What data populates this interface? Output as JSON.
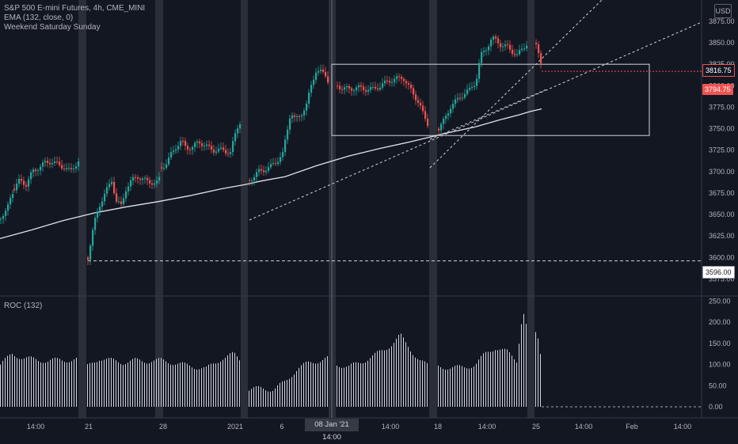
{
  "chart_data": [
    {
      "type": "candlestick",
      "title": "S&P 500 E-mini Futures, 4h, CME_MINI",
      "indicators": [
        "EMA (132, close, 0)",
        "Weekend Saturday Sunday"
      ],
      "currency": "USD",
      "x_ticks": [
        "14:00",
        "21",
        "28",
        "2021",
        "6",
        "08 Jan '21  14:00",
        "14:00",
        "18",
        "14:00",
        "25",
        "14:00",
        "Feb",
        "14:00"
      ],
      "y_ticks": [
        3875,
        3850,
        3825,
        3800,
        3775,
        3750,
        3725,
        3700,
        3675,
        3650,
        3625,
        3600,
        3575
      ],
      "y_tick_labels": [
        "3875.00",
        "3850.00",
        "3825.00",
        "3800.00",
        "3775.00",
        "3750.00",
        "3725.00",
        "3700.00",
        "3675.00",
        "3650.00",
        "3625.00",
        "3600.00",
        "3575.00"
      ],
      "ylim": [
        3568,
        3880
      ],
      "price_tags": [
        {
          "label": "3816.75",
          "value": 3816.75,
          "style": "boxed-red"
        },
        {
          "label": "3794.75",
          "value": 3794.75,
          "style": "filled-red"
        },
        {
          "label": "3596.00",
          "value": 3596.0,
          "style": "boxed-white"
        }
      ],
      "horizontal_levels": [
        3596.0,
        3816.75
      ],
      "rectangle": {
        "price_top": 3825,
        "price_bottom": 3742
      },
      "colors": {
        "up": "#26a69a",
        "down": "#ef5350",
        "ema": "#e0e3eb",
        "background": "#131722",
        "weekend": "#2a2e39"
      },
      "ema_path": [
        [
          0,
          3622
        ],
        [
          40,
          3632
        ],
        [
          80,
          3643
        ],
        [
          120,
          3652
        ],
        [
          160,
          3659
        ],
        [
          200,
          3665
        ],
        [
          240,
          3672
        ],
        [
          280,
          3680
        ],
        [
          310,
          3685
        ],
        [
          330,
          3689
        ],
        [
          360,
          3694
        ],
        [
          400,
          3707
        ],
        [
          440,
          3718
        ],
        [
          480,
          3727
        ],
        [
          520,
          3735
        ],
        [
          560,
          3744
        ],
        [
          600,
          3752
        ],
        [
          630,
          3760
        ],
        [
          655,
          3766
        ],
        [
          670,
          3770
        ],
        [
          684,
          3773
        ]
      ],
      "candle_segments": [
        {
          "from": 0,
          "to": 16,
          "anchors": [
            [
              0,
              3645
            ],
            [
              5,
              3655
            ],
            [
              10,
              3662
            ],
            [
              16,
              3675
            ]
          ]
        },
        {
          "from": 17,
          "to": 98,
          "anchors": [
            [
              17,
              3680
            ],
            [
              24,
              3690
            ],
            [
              32,
              3685
            ],
            [
              40,
              3700
            ],
            [
              48,
              3705
            ],
            [
              56,
              3710
            ],
            [
              64,
              3712
            ],
            [
              72,
              3708
            ],
            [
              80,
              3705
            ],
            [
              88,
              3700
            ],
            [
              94,
              3708
            ],
            [
              98,
              3712
            ]
          ]
        },
        {
          "from": 110,
          "to": 202,
          "anchors": [
            [
              110,
              3600
            ],
            [
              114,
              3620
            ],
            [
              118,
              3640
            ],
            [
              124,
              3660
            ],
            [
              132,
              3675
            ],
            [
              140,
              3690
            ],
            [
              146,
              3665
            ],
            [
              152,
              3660
            ],
            [
              158,
              3680
            ],
            [
              166,
              3690
            ],
            [
              172,
              3695
            ],
            [
              180,
              3690
            ],
            [
              190,
              3688
            ],
            [
              196,
              3685
            ],
            [
              202,
              3695
            ]
          ]
        },
        {
          "from": 203,
          "to": 303,
          "anchors": [
            [
              203,
              3705
            ],
            [
              210,
              3710
            ],
            [
              216,
              3722
            ],
            [
              222,
              3730
            ],
            [
              228,
              3735
            ],
            [
              234,
              3728
            ],
            [
              242,
              3728
            ],
            [
              250,
              3735
            ],
            [
              258,
              3730
            ],
            [
              268,
              3725
            ],
            [
              280,
              3725
            ],
            [
              290,
              3722
            ],
            [
              298,
              3750
            ],
            [
              303,
              3760
            ]
          ]
        },
        {
          "from": 314,
          "to": 414,
          "anchors": [
            [
              314,
              3690
            ],
            [
              320,
              3695
            ],
            [
              326,
              3700
            ],
            [
              332,
              3702
            ],
            [
              340,
              3705
            ],
            [
              348,
              3712
            ],
            [
              356,
              3720
            ],
            [
              362,
              3750
            ],
            [
              366,
              3770
            ],
            [
              372,
              3760
            ],
            [
              378,
              3765
            ],
            [
              386,
              3778
            ],
            [
              392,
              3800
            ],
            [
              398,
              3818
            ],
            [
              404,
              3816
            ],
            [
              410,
              3812
            ],
            [
              414,
              3805
            ]
          ]
        },
        {
          "from": 425,
          "to": 541,
          "anchors": [
            [
              425,
              3800
            ],
            [
              432,
              3797
            ],
            [
              440,
              3796
            ],
            [
              450,
              3798
            ],
            [
              460,
              3796
            ],
            [
              470,
              3796
            ],
            [
              480,
              3800
            ],
            [
              490,
              3806
            ],
            [
              500,
              3808
            ],
            [
              508,
              3810
            ],
            [
              514,
              3800
            ],
            [
              520,
              3792
            ],
            [
              528,
              3780
            ],
            [
              534,
              3765
            ],
            [
              541,
              3752
            ]
          ]
        },
        {
          "from": 553,
          "to": 665,
          "anchors": [
            [
              553,
              3750
            ],
            [
              560,
              3760
            ],
            [
              568,
              3776
            ],
            [
              576,
              3783
            ],
            [
              584,
              3790
            ],
            [
              592,
              3795
            ],
            [
              600,
              3805
            ],
            [
              606,
              3835
            ],
            [
              614,
              3845
            ],
            [
              620,
              3855
            ],
            [
              626,
              3853
            ],
            [
              632,
              3847
            ],
            [
              640,
              3845
            ],
            [
              646,
              3840
            ],
            [
              652,
              3835
            ],
            [
              660,
              3845
            ],
            [
              665,
              3850
            ]
          ]
        },
        {
          "from": 676,
          "to": 684,
          "anchors": [
            [
              676,
              3850
            ],
            [
              680,
              3838
            ],
            [
              684,
              3815
            ]
          ]
        }
      ]
    },
    {
      "type": "bar",
      "title": "ROC (132)",
      "y_ticks": [
        250,
        200,
        150,
        100,
        50,
        0
      ],
      "y_tick_labels": [
        "250.00",
        "200.00",
        "150.00",
        "100.00",
        "50.00",
        "0.00"
      ],
      "ylim": [
        -10,
        255
      ],
      "color": "#d1d4dc",
      "baseline": 0,
      "segments": [
        {
          "from": 0,
          "to": 98,
          "anchors": [
            [
              0,
              100
            ],
            [
              15,
              125
            ],
            [
              30,
              115
            ],
            [
              45,
              112
            ],
            [
              60,
              108
            ],
            [
              75,
              112
            ],
            [
              90,
              110
            ],
            [
              98,
              112
            ]
          ]
        },
        {
          "from": 110,
          "to": 202,
          "anchors": [
            [
              110,
              95
            ],
            [
              125,
              115
            ],
            [
              140,
              110
            ],
            [
              155,
              105
            ],
            [
              170,
              110
            ],
            [
              185,
              108
            ],
            [
              202,
              110
            ]
          ]
        },
        {
          "from": 203,
          "to": 303,
          "anchors": [
            [
              203,
              110
            ],
            [
              230,
              100
            ],
            [
              260,
              90
            ],
            [
              280,
              115
            ],
            [
              295,
              125
            ],
            [
              303,
              110
            ]
          ]
        },
        {
          "from": 314,
          "to": 414,
          "anchors": [
            [
              314,
              40
            ],
            [
              330,
              45
            ],
            [
              345,
              40
            ],
            [
              360,
              60
            ],
            [
              375,
              90
            ],
            [
              390,
              105
            ],
            [
              405,
              110
            ],
            [
              414,
              115
            ]
          ]
        },
        {
          "from": 425,
          "to": 541,
          "anchors": [
            [
              425,
              100
            ],
            [
              440,
              95
            ],
            [
              455,
              105
            ],
            [
              470,
              120
            ],
            [
              485,
              135
            ],
            [
              495,
              150
            ],
            [
              505,
              170
            ],
            [
              512,
              150
            ],
            [
              520,
              130
            ],
            [
              530,
              110
            ],
            [
              541,
              95
            ]
          ]
        },
        {
          "from": 553,
          "to": 665,
          "anchors": [
            [
              553,
              95
            ],
            [
              570,
              93
            ],
            [
              585,
              93
            ],
            [
              600,
              100
            ],
            [
              612,
              125
            ],
            [
              625,
              140
            ],
            [
              640,
              130
            ],
            [
              652,
              110
            ],
            [
              660,
              230
            ],
            [
              665,
              185
            ]
          ]
        },
        {
          "from": 676,
          "to": 684,
          "anchors": [
            [
              676,
              175
            ],
            [
              680,
              160
            ],
            [
              684,
              100
            ]
          ]
        }
      ]
    }
  ]
}
